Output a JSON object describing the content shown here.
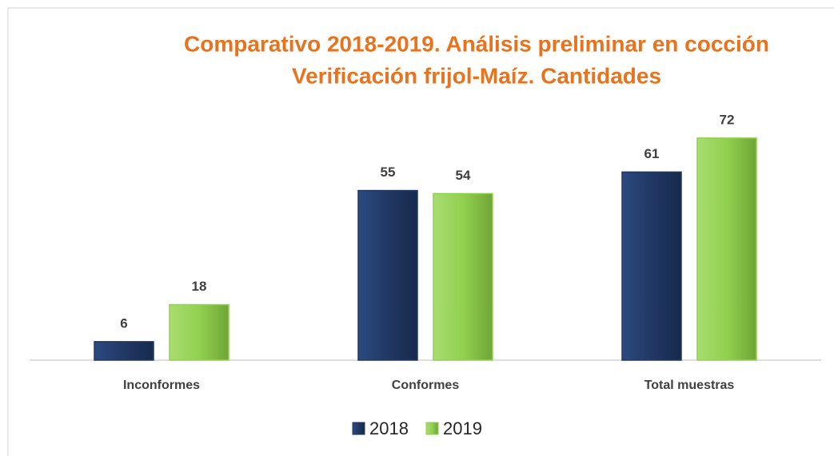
{
  "chart_data": {
    "type": "bar",
    "title": "Comparativo 2018-2019. Análisis preliminar en cocción",
    "subtitle": "Verificación frijol-Maíz. Cantidades",
    "categories": [
      "Inconformes",
      "Conformes",
      "Total muestras"
    ],
    "series": [
      {
        "name": "2018",
        "color": "#203864",
        "values": [
          6,
          55,
          61
        ]
      },
      {
        "name": "2019",
        "color": "#92d050",
        "values": [
          18,
          54,
          72
        ]
      }
    ],
    "ylim": [
      0,
      80
    ],
    "legend": "bottom"
  }
}
